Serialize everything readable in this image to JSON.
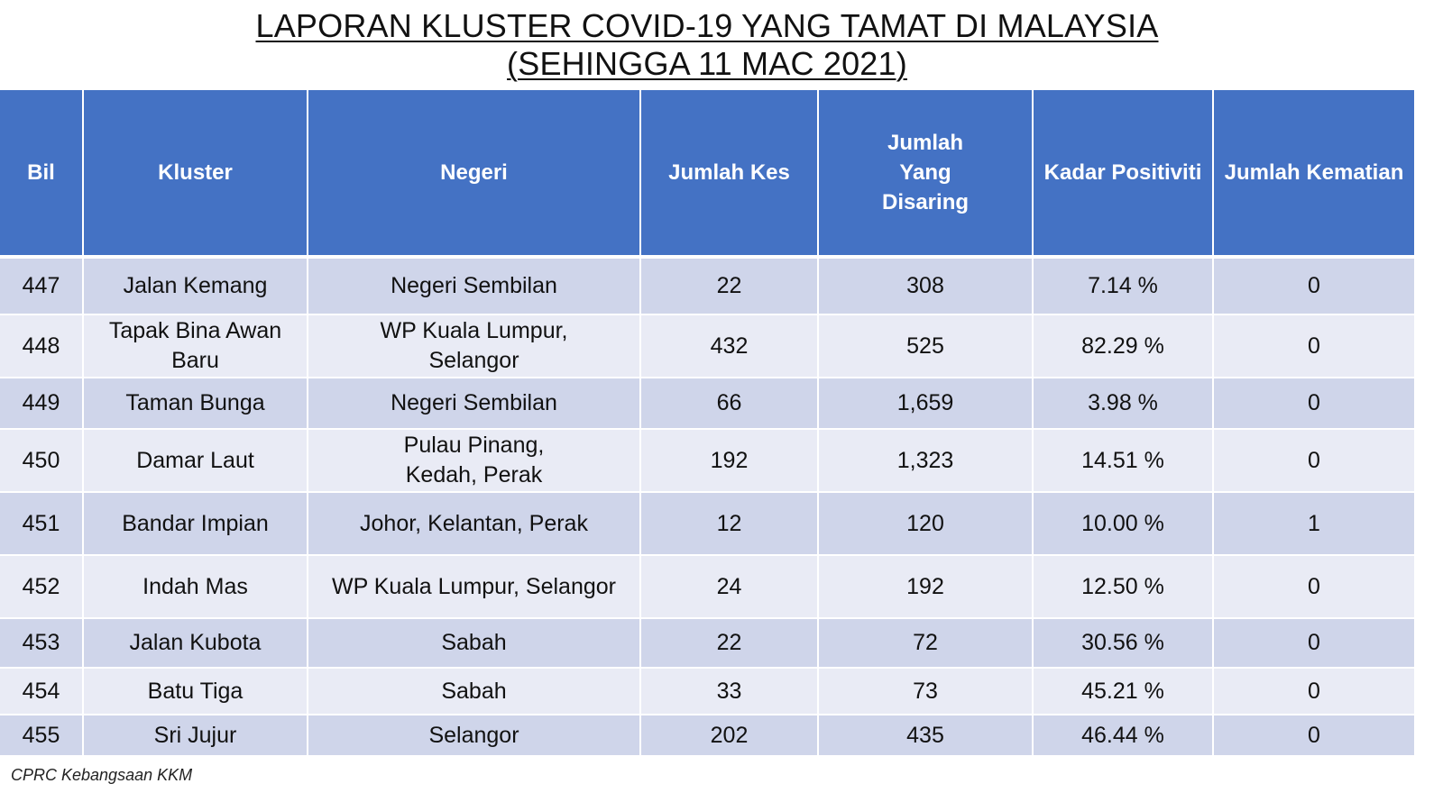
{
  "title": {
    "line1": "LAPORAN KLUSTER COVID-19 YANG TAMAT DI MALAYSIA",
    "line2": "(SEHINGGA  11 MAC 2021)"
  },
  "table": {
    "headers": {
      "bil": "Bil",
      "kluster": "Kluster",
      "negeri": "Negeri",
      "jumlah_kes": "Jumlah Kes",
      "jumlah_disaring": "Jumlah Yang Disaring",
      "kadar_positiviti": "Kadar Positiviti",
      "jumlah_kematian": "Jumlah Kematian"
    },
    "rows": [
      {
        "bil": "447",
        "kluster": "Jalan Kemang",
        "negeri": "Negeri Sembilan",
        "jumlah_kes": "22",
        "jumlah_disaring": "308",
        "kadar_positiviti": "7.14 %",
        "jumlah_kematian": "0"
      },
      {
        "bil": "448",
        "kluster": "Tapak Bina Awan Baru",
        "negeri": "WP Kuala Lumpur, Selangor",
        "jumlah_kes": "432",
        "jumlah_disaring": "525",
        "kadar_positiviti": "82.29 %",
        "jumlah_kematian": "0"
      },
      {
        "bil": "449",
        "kluster": "Taman Bunga",
        "negeri": "Negeri Sembilan",
        "jumlah_kes": "66",
        "jumlah_disaring": "1,659",
        "kadar_positiviti": "3.98 %",
        "jumlah_kematian": "0"
      },
      {
        "bil": "450",
        "kluster": "Damar Laut",
        "negeri": "Pulau Pinang, Kedah, Perak",
        "jumlah_kes": "192",
        "jumlah_disaring": "1,323",
        "kadar_positiviti": "14.51 %",
        "jumlah_kematian": "0"
      },
      {
        "bil": "451",
        "kluster": "Bandar Impian",
        "negeri": "Johor, Kelantan, Perak",
        "jumlah_kes": "12",
        "jumlah_disaring": "120",
        "kadar_positiviti": "10.00 %",
        "jumlah_kematian": "1"
      },
      {
        "bil": "452",
        "kluster": "Indah Mas",
        "negeri": "WP Kuala Lumpur, Selangor",
        "jumlah_kes": "24",
        "jumlah_disaring": "192",
        "kadar_positiviti": "12.50 %",
        "jumlah_kematian": "0"
      },
      {
        "bil": "453",
        "kluster": "Jalan Kubota",
        "negeri": "Sabah",
        "jumlah_kes": "22",
        "jumlah_disaring": "72",
        "kadar_positiviti": "30.56 %",
        "jumlah_kematian": "0"
      },
      {
        "bil": "454",
        "kluster": "Batu Tiga",
        "negeri": "Sabah",
        "jumlah_kes": "33",
        "jumlah_disaring": "73",
        "kadar_positiviti": "45.21 %",
        "jumlah_kematian": "0"
      },
      {
        "bil": "455",
        "kluster": "Sri Jujur",
        "negeri": "Selangor",
        "jumlah_kes": "202",
        "jumlah_disaring": "435",
        "kadar_positiviti": "46.44 %",
        "jumlah_kematian": "0"
      }
    ]
  },
  "footer": {
    "source": "CPRC Kebangsaan KKM"
  },
  "colors": {
    "header_bg": "#4472c4",
    "row_dark": "#cfd5ea",
    "row_light": "#e9ebf5"
  }
}
